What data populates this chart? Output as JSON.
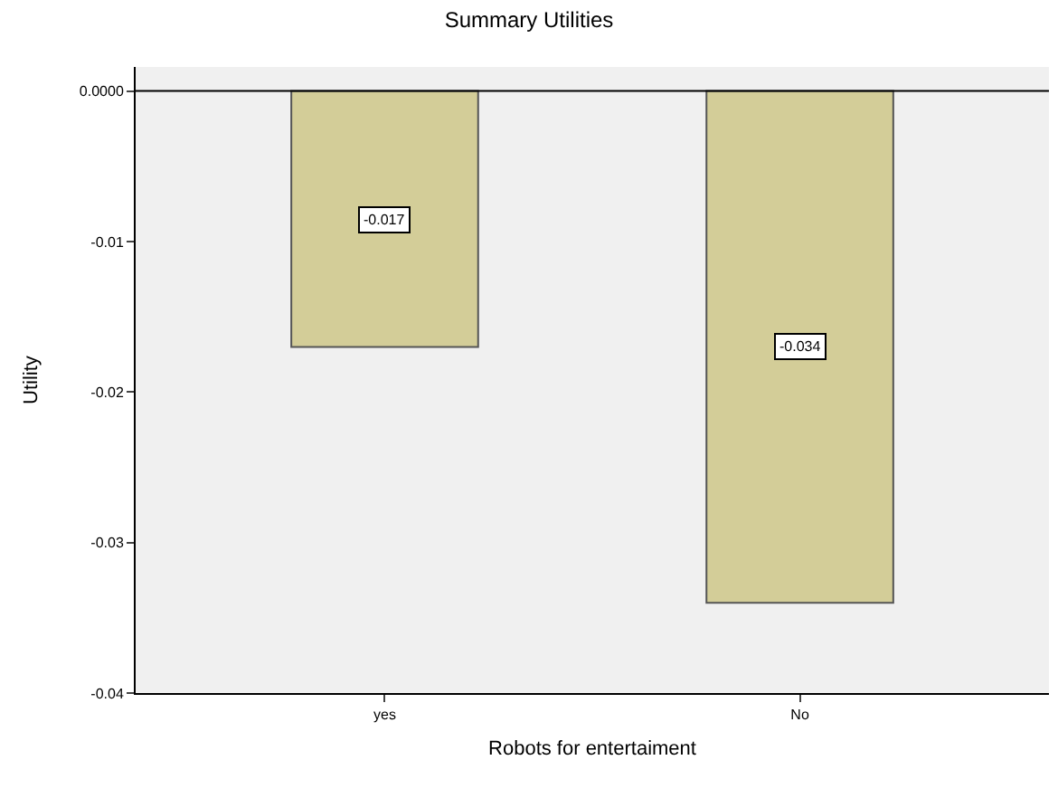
{
  "chart_data": {
    "type": "bar",
    "title": "Summary Utilities",
    "xlabel": "Robots for entertaiment",
    "ylabel": "Utility",
    "categories": [
      "yes",
      "No"
    ],
    "values": [
      -0.017,
      -0.034
    ],
    "color": "#d3cd98",
    "ylim": [
      -0.04,
      0.0016
    ],
    "yticks": [
      {
        "value": 0,
        "label": "0.0000"
      },
      -0.01,
      -0.02,
      -0.03,
      -0.04
    ],
    "ref_lines": [
      {
        "axis": "y",
        "value": 0,
        "label": null
      }
    ],
    "data_labels": true,
    "grid": false
  }
}
